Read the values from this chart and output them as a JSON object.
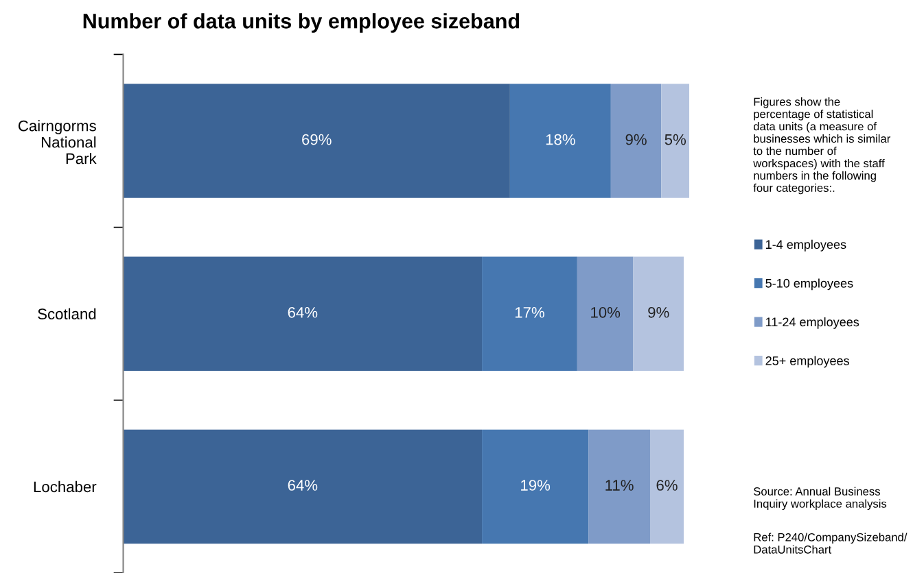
{
  "chart_data": {
    "type": "bar",
    "orientation": "horizontal",
    "stacked": true,
    "title": "Number of data units by employee sizeband",
    "categories": [
      "Cairngorms\nNational\nPark",
      "Scotland",
      "Lochaber"
    ],
    "series": [
      {
        "name": "1-4 employees",
        "color": "#3c6496",
        "values": [
          69,
          64,
          64
        ],
        "value_labels": [
          "69%",
          "64%",
          "64%"
        ]
      },
      {
        "name": "5-10 employees",
        "color": "#4677b0",
        "values": [
          18,
          17,
          19
        ],
        "value_labels": [
          "18%",
          "17%",
          "19%"
        ]
      },
      {
        "name": "11-24 employees",
        "color": "#7f9bc8",
        "values": [
          9,
          10,
          11
        ],
        "value_labels": [
          "9%",
          "10%",
          "11%"
        ]
      },
      {
        "name": "25+ employees",
        "color": "#b4c3df",
        "values": [
          5,
          9,
          6
        ],
        "value_labels": [
          "5%",
          "9%",
          "6%"
        ]
      }
    ],
    "legend": "right",
    "grid": false,
    "annotations": [
      "Figures show the\npercentage of statistical\ndata units (a measure of\nbusinesses which is similar\nto the number of\nworkspaces) with the staff\nnumbers in the following\nfour categories:.",
      "Source: Annual Business\nInquiry workplace analysis",
      "Ref: P240/CompanySizeband/\nDataUnitsChart"
    ]
  }
}
